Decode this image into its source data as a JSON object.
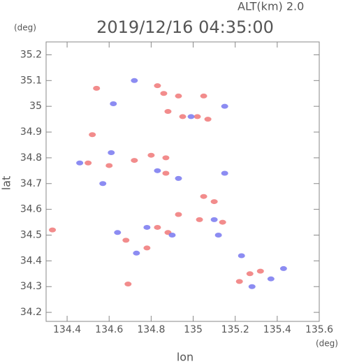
{
  "chart_data": {
    "type": "scatter",
    "title": "2019/12/16 04:35:00",
    "subtitle": "ALT(km) 2.0",
    "x_label": "lon",
    "y_label": "lat",
    "x_unit": "(deg)",
    "y_unit": "(deg)",
    "xlim": [
      134.3,
      135.6
    ],
    "ylim": [
      34.165,
      35.25
    ],
    "xticks": [
      134.4,
      134.6,
      134.8,
      135.0,
      135.2,
      135.4,
      135.6
    ],
    "yticks": [
      34.2,
      34.3,
      34.4,
      34.5,
      34.6,
      34.7,
      34.8,
      34.9,
      35.0,
      35.1,
      35.2
    ],
    "series": [
      {
        "color": "#f07878",
        "x": [
          134.33,
          134.52,
          134.54,
          134.69,
          134.68,
          134.83,
          134.86,
          134.93,
          135.05,
          134.88,
          134.95,
          135.02,
          135.07,
          134.5,
          134.6,
          134.72,
          134.8,
          134.87,
          135.05,
          135.1,
          134.93,
          135.03,
          134.83,
          134.88,
          135.27,
          135.32,
          135.22,
          135.14,
          134.87,
          134.78
        ],
        "values": [
          34.52,
          34.89,
          35.07,
          34.31,
          34.48,
          35.08,
          35.05,
          35.04,
          35.04,
          34.98,
          34.96,
          34.96,
          34.95,
          34.78,
          34.77,
          34.79,
          34.81,
          34.8,
          34.65,
          34.63,
          34.58,
          34.56,
          34.53,
          34.51,
          34.35,
          34.36,
          34.32,
          34.55,
          34.74,
          34.45
        ]
      },
      {
        "color": "#7878f0",
        "x": [
          134.72,
          134.62,
          135.15,
          134.99,
          134.46,
          134.61,
          134.83,
          134.93,
          135.15,
          135.1,
          135.12,
          134.78,
          134.64,
          134.73,
          135.43,
          135.37,
          135.23,
          135.28,
          134.9,
          134.57
        ],
        "values": [
          35.1,
          35.01,
          35.0,
          34.96,
          34.78,
          34.82,
          34.75,
          34.72,
          34.74,
          34.56,
          34.5,
          34.53,
          34.51,
          34.43,
          34.37,
          34.33,
          34.42,
          34.3,
          34.5,
          34.7
        ]
      }
    ]
  }
}
